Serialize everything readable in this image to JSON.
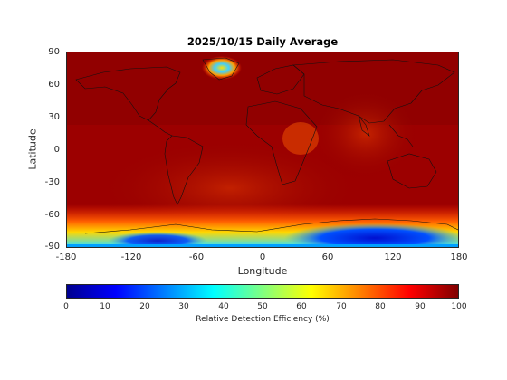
{
  "title": "2025/10/15 Daily Average",
  "axes": {
    "xlabel": "Longitude",
    "ylabel": "Latitude",
    "xticks": [
      "-180",
      "-120",
      "-60",
      "0",
      "60",
      "120",
      "180"
    ],
    "yticks": [
      "90",
      "60",
      "30",
      "0",
      "-30",
      "-60",
      "-90"
    ]
  },
  "colorbar": {
    "label": "Relative Detection Efficiency (%)",
    "ticks": [
      "0",
      "10",
      "20",
      "30",
      "40",
      "50",
      "60",
      "70",
      "80",
      "90",
      "100"
    ],
    "colormap": "jet",
    "range": [
      0,
      100
    ]
  },
  "map": {
    "projection": "equirectangular",
    "lon_range": [
      -180,
      180
    ],
    "lat_range": [
      -90,
      90
    ],
    "background_value": 95,
    "colors": {
      "dark_red": "#8a0000",
      "red": "#c81400",
      "orange_red": "#e63c00",
      "blue": "#0a28ff",
      "light_blue": "#14b4ff",
      "cyan": "#50ffc8",
      "yellow": "#ffd700"
    }
  }
}
